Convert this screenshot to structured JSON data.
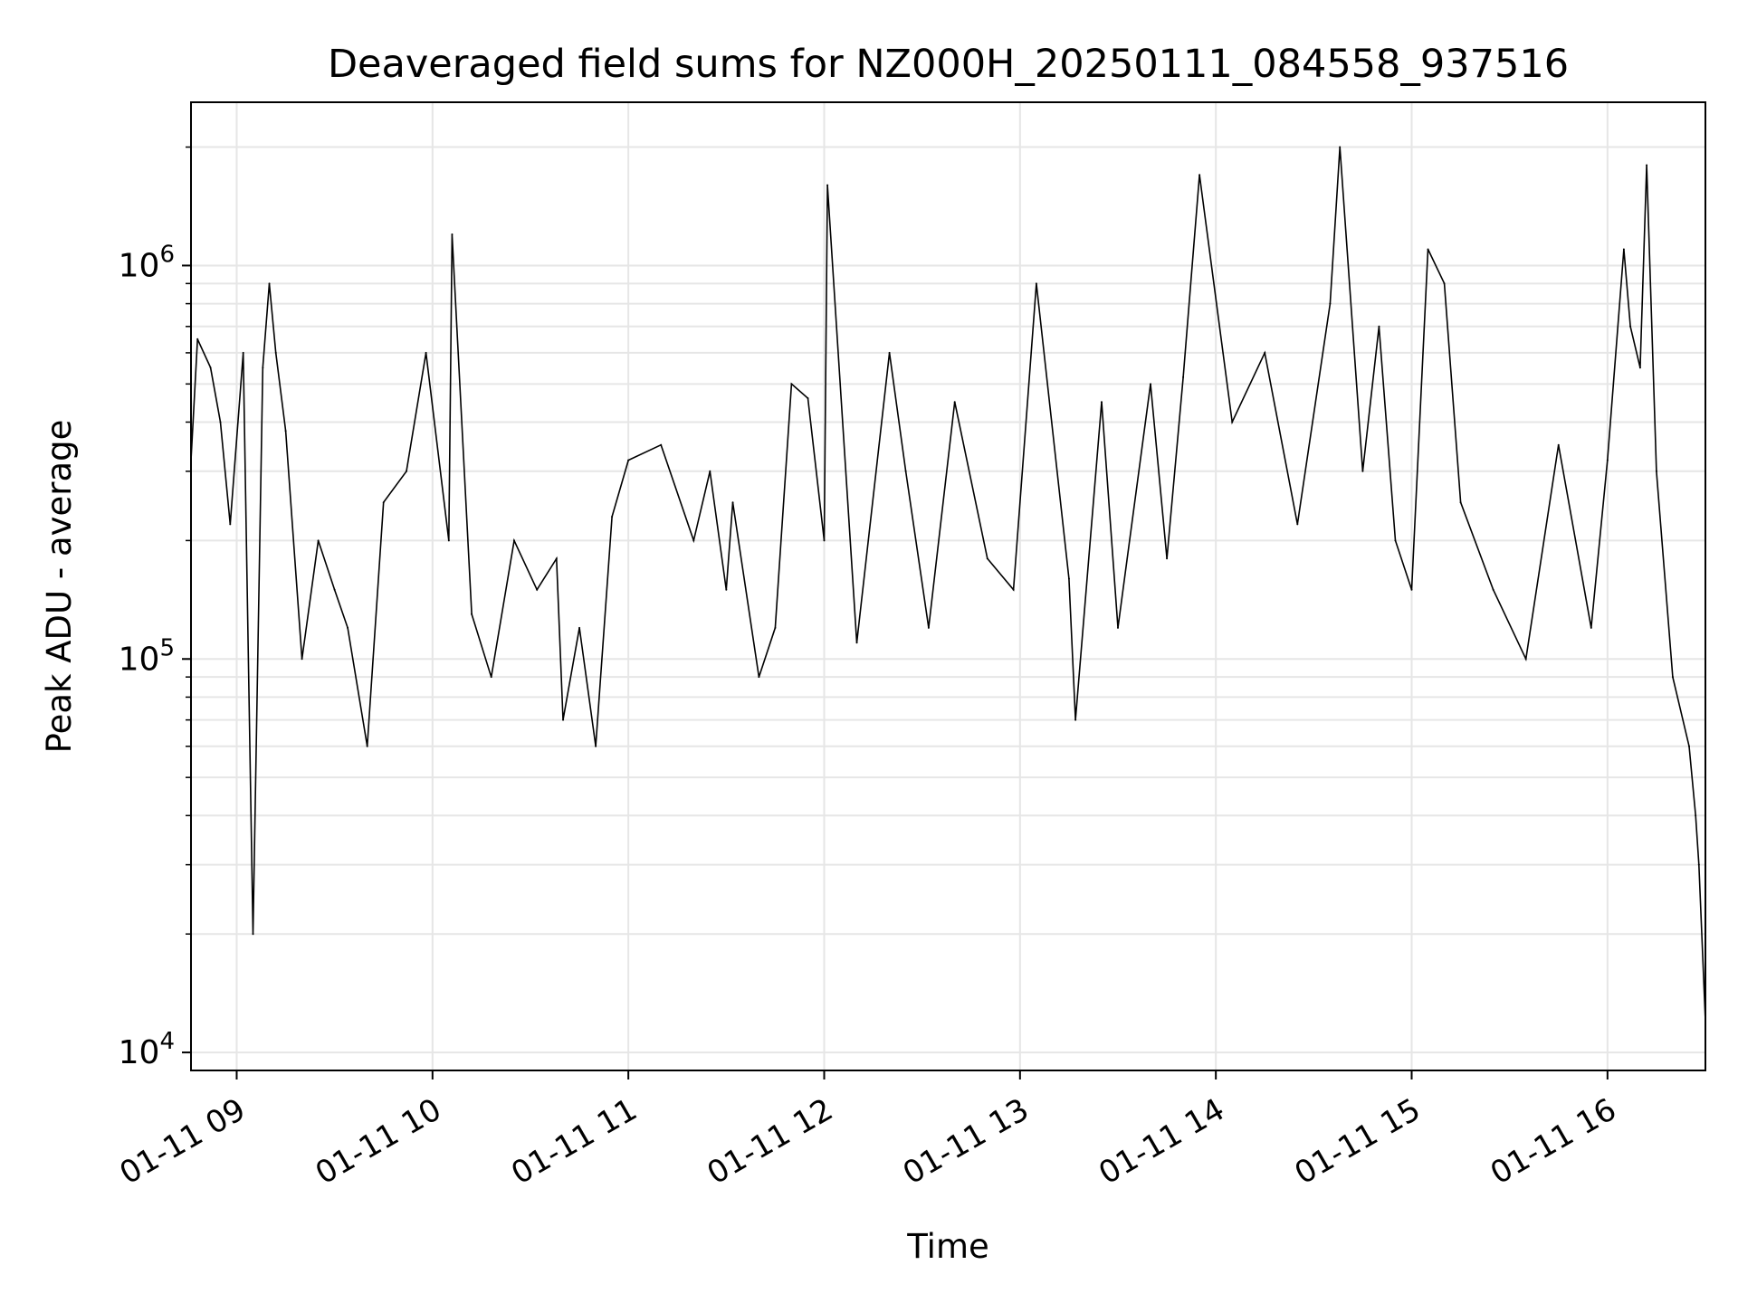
{
  "chart_data": {
    "type": "line",
    "title": "Deaveraged field sums for NZ000H_20250111_084558_937516",
    "xlabel": "Time",
    "ylabel": "Peak ADU - average",
    "yscale": "log",
    "grid": true,
    "xlim": [
      "2025-01-11 08:46",
      "2025-01-11 16:30"
    ],
    "ylim": [
      9000,
      2600000
    ],
    "x_ticks": [
      {
        "value": "2025-01-11 09:00",
        "label": "01-11 09"
      },
      {
        "value": "2025-01-11 10:00",
        "label": "01-11 10"
      },
      {
        "value": "2025-01-11 11:00",
        "label": "01-11 11"
      },
      {
        "value": "2025-01-11 12:00",
        "label": "01-11 12"
      },
      {
        "value": "2025-01-11 13:00",
        "label": "01-11 13"
      },
      {
        "value": "2025-01-11 14:00",
        "label": "01-11 14"
      },
      {
        "value": "2025-01-11 15:00",
        "label": "01-11 15"
      },
      {
        "value": "2025-01-11 16:00",
        "label": "01-11 16"
      }
    ],
    "y_ticks": [
      {
        "value": 10000,
        "base": "10",
        "exp": "4"
      },
      {
        "value": 100000,
        "base": "10",
        "exp": "5"
      },
      {
        "value": 1000000,
        "base": "10",
        "exp": "6"
      }
    ],
    "series": [
      {
        "color": "#000000",
        "x": [
          "2025-01-11 08:46",
          "2025-01-11 08:48",
          "2025-01-11 08:52",
          "2025-01-11 08:55",
          "2025-01-11 08:58",
          "2025-01-11 09:02",
          "2025-01-11 09:05",
          "2025-01-11 09:08",
          "2025-01-11 09:10",
          "2025-01-11 09:12",
          "2025-01-11 09:15",
          "2025-01-11 09:20",
          "2025-01-11 09:25",
          "2025-01-11 09:30",
          "2025-01-11 09:34",
          "2025-01-11 09:40",
          "2025-01-11 09:45",
          "2025-01-11 09:52",
          "2025-01-11 09:58",
          "2025-01-11 10:05",
          "2025-01-11 10:06",
          "2025-01-11 10:12",
          "2025-01-11 10:18",
          "2025-01-11 10:25",
          "2025-01-11 10:32",
          "2025-01-11 10:38",
          "2025-01-11 10:40",
          "2025-01-11 10:45",
          "2025-01-11 10:50",
          "2025-01-11 10:55",
          "2025-01-11 11:00",
          "2025-01-11 11:10",
          "2025-01-11 11:20",
          "2025-01-11 11:25",
          "2025-01-11 11:30",
          "2025-01-11 11:32",
          "2025-01-11 11:40",
          "2025-01-11 11:45",
          "2025-01-11 11:50",
          "2025-01-11 11:55",
          "2025-01-11 12:00",
          "2025-01-11 12:01",
          "2025-01-11 12:10",
          "2025-01-11 12:20",
          "2025-01-11 12:25",
          "2025-01-11 12:32",
          "2025-01-11 12:40",
          "2025-01-11 12:50",
          "2025-01-11 12:58",
          "2025-01-11 13:05",
          "2025-01-11 13:15",
          "2025-01-11 13:17",
          "2025-01-11 13:25",
          "2025-01-11 13:30",
          "2025-01-11 13:40",
          "2025-01-11 13:45",
          "2025-01-11 13:50",
          "2025-01-11 13:55",
          "2025-01-11 14:05",
          "2025-01-11 14:15",
          "2025-01-11 14:25",
          "2025-01-11 14:35",
          "2025-01-11 14:38",
          "2025-01-11 14:45",
          "2025-01-11 14:50",
          "2025-01-11 14:55",
          "2025-01-11 15:00",
          "2025-01-11 15:05",
          "2025-01-11 15:10",
          "2025-01-11 15:15",
          "2025-01-11 15:25",
          "2025-01-11 15:35",
          "2025-01-11 15:45",
          "2025-01-11 15:55",
          "2025-01-11 16:00",
          "2025-01-11 16:05",
          "2025-01-11 16:07",
          "2025-01-11 16:10",
          "2025-01-11 16:12",
          "2025-01-11 16:15",
          "2025-01-11 16:20",
          "2025-01-11 16:25",
          "2025-01-11 16:27",
          "2025-01-11 16:28",
          "2025-01-11 16:30"
        ],
        "y": [
          320000,
          650000,
          550000,
          400000,
          220000,
          600000,
          20000,
          550000,
          900000,
          600000,
          380000,
          100000,
          200000,
          150000,
          120000,
          60000,
          250000,
          300000,
          600000,
          200000,
          1200000,
          130000,
          90000,
          200000,
          150000,
          180000,
          70000,
          120000,
          60000,
          230000,
          320000,
          350000,
          200000,
          300000,
          150000,
          250000,
          90000,
          120000,
          500000,
          460000,
          200000,
          1600000,
          110000,
          600000,
          300000,
          120000,
          450000,
          180000,
          150000,
          900000,
          160000,
          70000,
          450000,
          120000,
          500000,
          180000,
          520000,
          1700000,
          400000,
          600000,
          220000,
          800000,
          2000000,
          300000,
          700000,
          200000,
          150000,
          1100000,
          900000,
          250000,
          150000,
          100000,
          350000,
          120000,
          320000,
          1100000,
          700000,
          550000,
          1800000,
          300000,
          90000,
          60000,
          40000,
          30000,
          12000
        ]
      }
    ]
  }
}
